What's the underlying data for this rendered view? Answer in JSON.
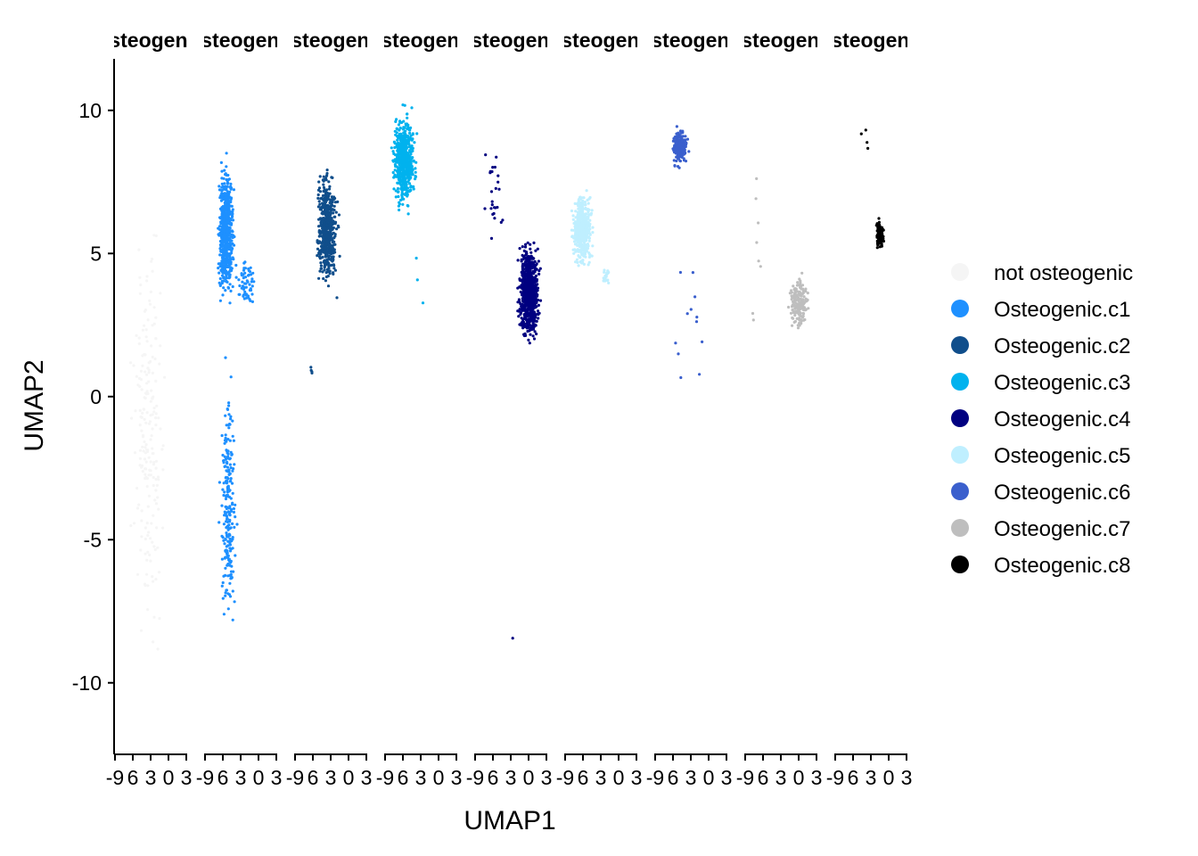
{
  "chart_data": {
    "type": "scatter",
    "xlabel": "UMAP1",
    "ylabel": "UMAP2",
    "ylim": [
      -12.5,
      11.8
    ],
    "y_ticks": [
      10,
      5,
      0,
      -5,
      -10
    ],
    "y_tick_labels": [
      "10",
      "5",
      "0",
      "-5",
      "-10"
    ],
    "x_tick_labels": [
      "-9",
      "6",
      "3",
      "0",
      "3"
    ],
    "legend_position": "right",
    "facets": [
      {
        "strip": "osteogenic",
        "series_index": 0,
        "clusters": [
          {
            "x": [
              0.15,
              0.8
            ],
            "y": [
              -11.5,
              8.5
            ],
            "n": 200
          }
        ]
      },
      {
        "strip": "Osteogenic",
        "series_index": 1,
        "clusters": [
          {
            "x": [
              0.15,
              0.45
            ],
            "y": [
              2.5,
              9.0
            ],
            "n": 650
          },
          {
            "x": [
              0.38,
              0.78
            ],
            "y": [
              2.8,
              5.2
            ],
            "n": 60
          },
          {
            "x": [
              0.17,
              0.48
            ],
            "y": [
              -10.2,
              2.5
            ],
            "n": 230
          }
        ]
      },
      {
        "strip": "Osteogenic",
        "series_index": 2,
        "clusters": [
          {
            "x": [
              0.25,
              0.65
            ],
            "y": [
              3.1,
              8.7
            ],
            "n": 550
          },
          {
            "x": [
              0.18,
              0.28
            ],
            "y": [
              0.6,
              1.2
            ],
            "n": 4
          }
        ]
      },
      {
        "strip": "Osteogenic",
        "series_index": 3,
        "clusters": [
          {
            "x": [
              0.05,
              0.5
            ],
            "y": [
              5.9,
              10.7
            ],
            "n": 550
          },
          {
            "x": [
              0.3,
              0.62
            ],
            "y": [
              2.5,
              5.6
            ],
            "n": 3
          }
        ]
      },
      {
        "strip": "Osteogenic",
        "series_index": 4,
        "clusters": [
          {
            "x": [
              0.55,
              0.95
            ],
            "y": [
              1.3,
              6.0
            ],
            "n": 750
          },
          {
            "x": [
              0.05,
              0.5
            ],
            "y": [
              4.0,
              10.1
            ],
            "n": 25
          },
          {
            "x": [
              0.5,
              0.55
            ],
            "y": [
              -8.5,
              -8.4
            ],
            "n": 1
          }
        ]
      },
      {
        "strip": "Osteogenic",
        "series_index": 5,
        "clusters": [
          {
            "x": [
              0.05,
              0.45
            ],
            "y": [
              4.0,
              7.7
            ],
            "n": 450
          },
          {
            "x": [
              0.5,
              0.65
            ],
            "y": [
              3.7,
              4.7
            ],
            "n": 20
          }
        ]
      },
      {
        "strip": "Osteogenic",
        "series_index": 6,
        "clusters": [
          {
            "x": [
              0.2,
              0.5
            ],
            "y": [
              7.8,
              9.6
            ],
            "n": 250
          },
          {
            "x": [
              0.05,
              0.88
            ],
            "y": [
              -1.9,
              7.5
            ],
            "n": 12
          }
        ]
      },
      {
        "strip": "Osteogenic",
        "series_index": 7,
        "clusters": [
          {
            "x": [
              0.55,
              0.95
            ],
            "y": [
              1.9,
              4.6
            ],
            "n": 180
          },
          {
            "x": [
              0.05,
              0.3
            ],
            "y": [
              0.2,
              10.3
            ],
            "n": 8
          }
        ]
      },
      {
        "strip": "Osteogenic",
        "series_index": 8,
        "clusters": [
          {
            "x": [
              0.55,
              0.7
            ],
            "y": [
              4.9,
              6.4
            ],
            "n": 120
          },
          {
            "x": [
              0.3,
              0.55
            ],
            "y": [
              7.2,
              10.0
            ],
            "n": 4
          }
        ]
      }
    ],
    "series": [
      {
        "name": "not osteogenic",
        "color": "#F5F5F5"
      },
      {
        "name": "Osteogenic.c1",
        "color": "#1E90FF"
      },
      {
        "name": "Osteogenic.c2",
        "color": "#104E8B"
      },
      {
        "name": "Osteogenic.c3",
        "color": "#00B2EE"
      },
      {
        "name": "Osteogenic.c4",
        "color": "#000080"
      },
      {
        "name": "Osteogenic.c5",
        "color": "#BFEFFF"
      },
      {
        "name": "Osteogenic.c6",
        "color": "#3A5FCD"
      },
      {
        "name": "Osteogenic.c7",
        "color": "#BEBEBE"
      },
      {
        "name": "Osteogenic.c8",
        "color": "#000000"
      }
    ]
  }
}
